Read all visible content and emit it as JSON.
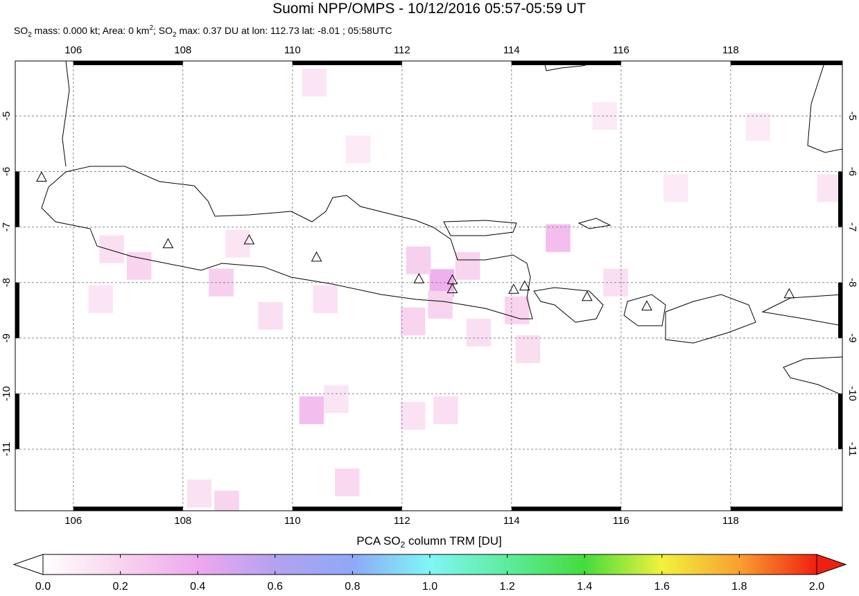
{
  "header": {
    "title": "Suomi NPP/OMPS - 10/12/2016 05:57-05:59 UT",
    "subtitle": [
      "SO",
      "2",
      " mass: 0.000 kt; Area: 0 km",
      "2",
      "; SO",
      "2",
      " max: 0.37 DU at lon: 112.73 lat: -8.01 ; 05:58UTC"
    ]
  },
  "map": {
    "xlim": [
      104.94,
      120.04
    ],
    "ylim": [
      -12.11,
      -4.01
    ],
    "xticks": [
      106,
      108,
      110,
      112,
      114,
      116,
      118
    ],
    "yticks": [
      -5,
      -6,
      -7,
      -8,
      -9,
      -10,
      -11
    ],
    "grid": true,
    "cell_size": [
      0.45,
      0.5
    ],
    "cells": [
      [
        112.73,
        -8.01,
        0.37
      ],
      [
        112.3,
        -7.6,
        0.22
      ],
      [
        113.2,
        -7.7,
        0.2
      ],
      [
        114.85,
        -7.2,
        0.3
      ],
      [
        110.35,
        -10.3,
        0.3
      ],
      [
        110.8,
        -10.1,
        0.12
      ],
      [
        107.2,
        -7.7,
        0.2
      ],
      [
        106.7,
        -7.4,
        0.15
      ],
      [
        108.7,
        -8.0,
        0.22
      ],
      [
        109.6,
        -8.6,
        0.15
      ],
      [
        112.2,
        -8.7,
        0.2
      ],
      [
        112.7,
        -8.4,
        0.2
      ],
      [
        113.4,
        -8.9,
        0.15
      ],
      [
        111.0,
        -11.6,
        0.18
      ],
      [
        108.3,
        -11.8,
        0.14
      ],
      [
        112.2,
        -10.4,
        0.14
      ],
      [
        112.8,
        -10.3,
        0.15
      ],
      [
        114.3,
        -9.2,
        0.16
      ],
      [
        114.1,
        -8.5,
        0.2
      ],
      [
        110.4,
        -4.4,
        0.12
      ],
      [
        111.2,
        -5.6,
        0.1
      ],
      [
        117.0,
        -6.3,
        0.1
      ],
      [
        118.5,
        -5.2,
        0.1
      ],
      [
        119.8,
        -6.3,
        0.12
      ],
      [
        115.9,
        -8.0,
        0.15
      ],
      [
        108.8,
        -12.0,
        0.2
      ],
      [
        106.5,
        -8.3,
        0.12
      ],
      [
        109.0,
        -7.3,
        0.12
      ],
      [
        110.6,
        -8.3,
        0.14
      ],
      [
        115.7,
        -5.0,
        0.1
      ]
    ],
    "volcanoes": [
      [
        105.42,
        -6.1
      ],
      [
        107.73,
        -7.3
      ],
      [
        109.21,
        -7.23
      ],
      [
        110.44,
        -7.54
      ],
      [
        112.31,
        -7.93
      ],
      [
        112.92,
        -7.95
      ],
      [
        112.92,
        -8.11
      ],
      [
        114.04,
        -8.12
      ],
      [
        114.24,
        -8.06
      ],
      [
        115.38,
        -8.25
      ],
      [
        116.47,
        -8.42
      ],
      [
        119.07,
        -8.2
      ]
    ]
  },
  "colorbar": {
    "label": [
      "PCA SO",
      "2",
      " column TRM [DU]"
    ],
    "range": [
      0.0,
      2.0
    ],
    "ticks": [
      {
        "value": 0.0,
        "label": "0.0"
      },
      {
        "value": 0.2,
        "label": "0.2"
      },
      {
        "value": 0.4,
        "label": "0.4"
      },
      {
        "value": 0.6,
        "label": "0.6"
      },
      {
        "value": 0.8,
        "label": "0.8"
      },
      {
        "value": 1.0,
        "label": "1.0"
      },
      {
        "value": 1.2,
        "label": "1.2"
      },
      {
        "value": 1.4,
        "label": "1.4"
      },
      {
        "value": 1.6,
        "label": "1.6"
      },
      {
        "value": 1.8,
        "label": "1.8"
      },
      {
        "value": 2.0,
        "label": "2.0"
      }
    ],
    "colors": [
      "#ffffff",
      "#f8d4ee",
      "#eea8ee",
      "#b4a2f0",
      "#8ea8f8",
      "#80f6f6",
      "#5cec9c",
      "#44dc3c",
      "#f2f23c",
      "#f8a030",
      "#f02010"
    ]
  }
}
